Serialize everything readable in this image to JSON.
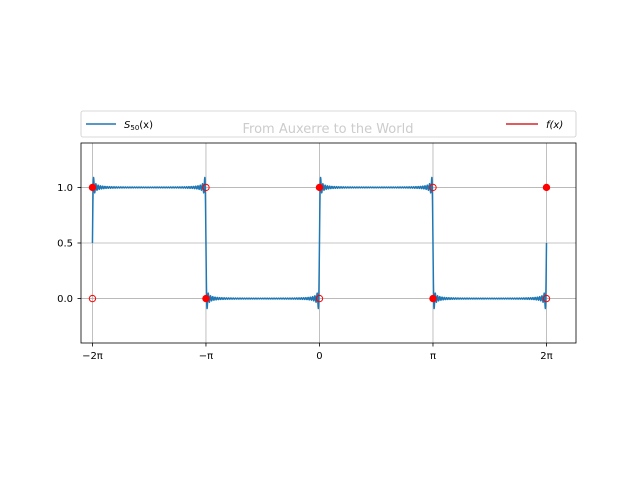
{
  "chart_data": {
    "type": "line",
    "title": "",
    "watermark": "From Auxerre to the World",
    "xlabel": "",
    "ylabel": "",
    "xlim": [
      -6.6,
      7.1
    ],
    "ylim": [
      -0.4,
      1.4
    ],
    "grid": true,
    "x_ticks": [
      {
        "value": -6.2832,
        "label": "−2π"
      },
      {
        "value": -3.1416,
        "label": "−π"
      },
      {
        "value": 0,
        "label": "0"
      },
      {
        "value": 3.1416,
        "label": "π"
      },
      {
        "value": 6.2832,
        "label": "2π"
      }
    ],
    "y_ticks": [
      {
        "value": 0.0,
        "label": "0.0"
      },
      {
        "value": 0.5,
        "label": "0.5"
      },
      {
        "value": 1.0,
        "label": "1.0"
      }
    ],
    "legend": {
      "placement": "top-spanning",
      "entries": [
        {
          "label_base": "S",
          "label_sub": "50",
          "label_tail": "(x)",
          "color": "#1f77b4"
        },
        {
          "label_base": "f(x)",
          "label_sub": "",
          "label_tail": "",
          "color": "#d62728"
        }
      ]
    },
    "series": [
      {
        "name": "S50(x)",
        "kind": "fourier_partial_sum_square_wave",
        "terms": 50,
        "domain": [
          -6.2832,
          6.2832
        ],
        "color": "#1f77b4"
      }
    ],
    "endpoints": {
      "color": "#ff0000",
      "filled": [
        {
          "x": -6.2832,
          "y": 1
        },
        {
          "x": -3.1416,
          "y": 0
        },
        {
          "x": 0,
          "y": 1
        },
        {
          "x": 3.1416,
          "y": 0
        },
        {
          "x": 6.2832,
          "y": 1
        }
      ],
      "open": [
        {
          "x": -6.2832,
          "y": 0
        },
        {
          "x": -3.1416,
          "y": 1
        },
        {
          "x": 0,
          "y": 0
        },
        {
          "x": 3.1416,
          "y": 1
        },
        {
          "x": 6.2832,
          "y": 0
        }
      ]
    }
  }
}
